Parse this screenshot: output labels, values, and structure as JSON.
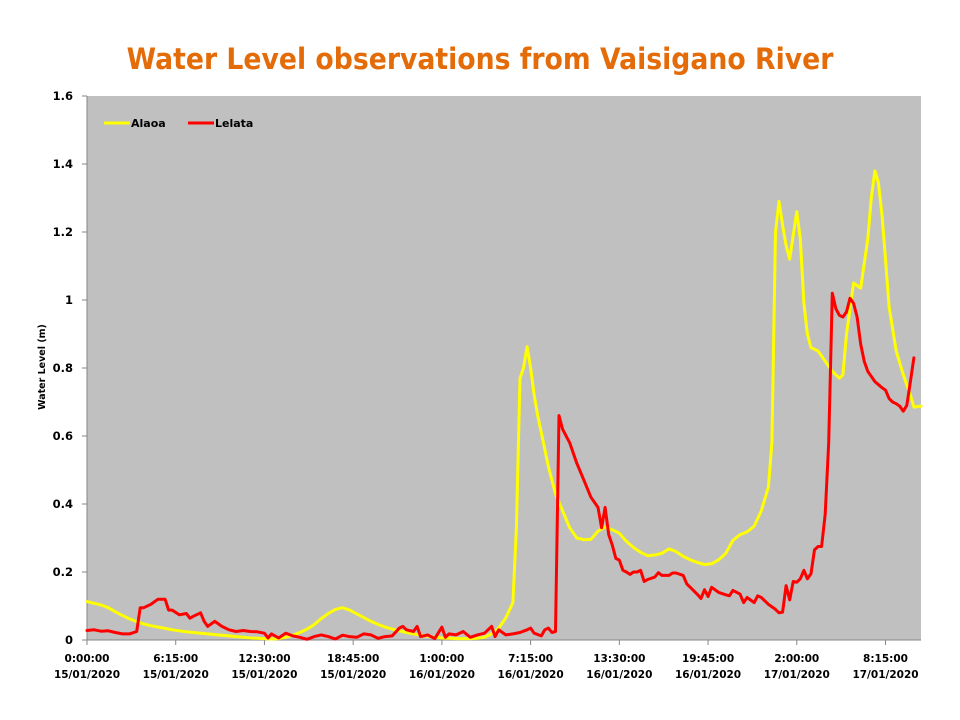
{
  "chart_data": {
    "type": "line",
    "title": "Water Level observations from Vaisigano River",
    "xlabel": "",
    "ylabel": "Water Level (m)",
    "ylim": [
      0,
      1.6
    ],
    "yticks": [
      "0",
      "0.2",
      "0.4",
      "0.6",
      "0.8",
      "1",
      "1.2",
      "1.4",
      "1.6"
    ],
    "ytick_values": [
      0,
      0.2,
      0.4,
      0.6,
      0.8,
      1.0,
      1.2,
      1.4,
      1.6
    ],
    "x_unit": "hours since 0:00:00 15/01/2020",
    "xlim": [
      0,
      58.75
    ],
    "xticks": [
      {
        "hours": 0,
        "time": "0:00:00",
        "date": "15/01/2020"
      },
      {
        "hours": 6.25,
        "time": "6:15:00",
        "date": "15/01/2020"
      },
      {
        "hours": 12.5,
        "time": "12:30:00",
        "date": "15/01/2020"
      },
      {
        "hours": 18.75,
        "time": "18:45:00",
        "date": "15/01/2020"
      },
      {
        "hours": 25,
        "time": "1:00:00",
        "date": "16/01/2020"
      },
      {
        "hours": 31.25,
        "time": "7:15:00",
        "date": "16/01/2020"
      },
      {
        "hours": 37.5,
        "time": "13:30:00",
        "date": "16/01/2020"
      },
      {
        "hours": 43.75,
        "time": "19:45:00",
        "date": "16/01/2020"
      },
      {
        "hours": 50,
        "time": "2:00:00",
        "date": "17/01/2020"
      },
      {
        "hours": 56.25,
        "time": "8:15:00",
        "date": "17/01/2020"
      }
    ],
    "grid": false,
    "plot_background": "#c0c0c0",
    "legend": {
      "placement": "top-left",
      "entries": [
        "Alaoa",
        "Lelata"
      ]
    },
    "series": [
      {
        "name": "Alaoa",
        "color": "#ffff00",
        "points": [
          [
            0,
            0.113
          ],
          [
            0.5,
            0.108
          ],
          [
            1,
            0.103
          ],
          [
            1.5,
            0.095
          ],
          [
            2,
            0.083
          ],
          [
            2.5,
            0.072
          ],
          [
            3,
            0.062
          ],
          [
            3.5,
            0.054
          ],
          [
            4,
            0.047
          ],
          [
            4.5,
            0.042
          ],
          [
            5,
            0.038
          ],
          [
            5.5,
            0.034
          ],
          [
            6,
            0.03
          ],
          [
            6.5,
            0.027
          ],
          [
            7,
            0.024
          ],
          [
            7.5,
            0.022
          ],
          [
            8,
            0.02
          ],
          [
            8.5,
            0.018
          ],
          [
            9,
            0.016
          ],
          [
            9.5,
            0.014
          ],
          [
            10,
            0.012
          ],
          [
            10.5,
            0.01
          ],
          [
            11,
            0.008
          ],
          [
            11.5,
            0.006
          ],
          [
            12,
            0.005
          ],
          [
            12.5,
            0.004
          ],
          [
            13,
            0.003
          ],
          [
            13.5,
            0.004
          ],
          [
            14,
            0.008
          ],
          [
            14.5,
            0.014
          ],
          [
            15,
            0.022
          ],
          [
            15.5,
            0.032
          ],
          [
            16,
            0.045
          ],
          [
            16.5,
            0.063
          ],
          [
            17,
            0.078
          ],
          [
            17.5,
            0.09
          ],
          [
            18,
            0.095
          ],
          [
            18.5,
            0.088
          ],
          [
            19,
            0.077
          ],
          [
            19.5,
            0.066
          ],
          [
            20,
            0.055
          ],
          [
            20.5,
            0.046
          ],
          [
            21,
            0.038
          ],
          [
            21.5,
            0.032
          ],
          [
            22,
            0.027
          ],
          [
            22.5,
            0.022
          ],
          [
            23,
            0.018
          ],
          [
            23.5,
            0.014
          ],
          [
            24,
            0.011
          ],
          [
            24.5,
            0.008
          ],
          [
            25,
            0.006
          ],
          [
            25.5,
            0.005
          ],
          [
            26,
            0.004
          ],
          [
            26.5,
            0.004
          ],
          [
            27,
            0.004
          ],
          [
            27.5,
            0.005
          ],
          [
            28,
            0.008
          ],
          [
            28.5,
            0.018
          ],
          [
            29,
            0.035
          ],
          [
            29.5,
            0.065
          ],
          [
            30,
            0.11
          ],
          [
            30.25,
            0.33
          ],
          [
            30.5,
            0.77
          ],
          [
            30.75,
            0.8
          ],
          [
            31,
            0.863
          ],
          [
            31.25,
            0.8
          ],
          [
            31.5,
            0.72
          ],
          [
            31.75,
            0.66
          ],
          [
            32,
            0.61
          ],
          [
            32.5,
            0.51
          ],
          [
            33,
            0.43
          ],
          [
            33.5,
            0.38
          ],
          [
            34,
            0.33
          ],
          [
            34.5,
            0.3
          ],
          [
            35,
            0.295
          ],
          [
            35.5,
            0.296
          ],
          [
            36,
            0.32
          ],
          [
            36.5,
            0.332
          ],
          [
            37,
            0.324
          ],
          [
            37.5,
            0.314
          ],
          [
            38,
            0.29
          ],
          [
            38.5,
            0.272
          ],
          [
            39,
            0.258
          ],
          [
            39.5,
            0.248
          ],
          [
            40,
            0.25
          ],
          [
            40.5,
            0.255
          ],
          [
            41,
            0.268
          ],
          [
            41.5,
            0.26
          ],
          [
            42,
            0.246
          ],
          [
            42.5,
            0.236
          ],
          [
            43,
            0.228
          ],
          [
            43.5,
            0.222
          ],
          [
            44,
            0.224
          ],
          [
            44.5,
            0.236
          ],
          [
            45,
            0.255
          ],
          [
            45.5,
            0.293
          ],
          [
            46,
            0.31
          ],
          [
            46.5,
            0.318
          ],
          [
            47,
            0.335
          ],
          [
            47.5,
            0.38
          ],
          [
            48,
            0.45
          ],
          [
            48.25,
            0.58
          ],
          [
            48.5,
            1.2
          ],
          [
            48.75,
            1.29
          ],
          [
            49,
            1.22
          ],
          [
            49.25,
            1.16
          ],
          [
            49.5,
            1.12
          ],
          [
            49.75,
            1.19
          ],
          [
            50,
            1.26
          ],
          [
            50.25,
            1.18
          ],
          [
            50.5,
            0.99
          ],
          [
            50.75,
            0.9
          ],
          [
            51,
            0.86
          ],
          [
            51.5,
            0.85
          ],
          [
            52,
            0.82
          ],
          [
            52.5,
            0.79
          ],
          [
            53,
            0.77
          ],
          [
            53.25,
            0.78
          ],
          [
            53.5,
            0.9
          ],
          [
            54,
            1.05
          ],
          [
            54.5,
            1.035
          ],
          [
            55,
            1.18
          ],
          [
            55.25,
            1.3
          ],
          [
            55.5,
            1.38
          ],
          [
            55.75,
            1.345
          ],
          [
            56,
            1.25
          ],
          [
            56.25,
            1.12
          ],
          [
            56.5,
            0.98
          ],
          [
            57,
            0.85
          ],
          [
            57.5,
            0.78
          ],
          [
            58,
            0.72
          ],
          [
            58.25,
            0.685
          ],
          [
            58.75,
            0.688
          ]
        ]
      },
      {
        "name": "Lelata",
        "color": "#ff0000",
        "points": [
          [
            0,
            0.028
          ],
          [
            0.5,
            0.03
          ],
          [
            1,
            0.026
          ],
          [
            1.5,
            0.027
          ],
          [
            2,
            0.022
          ],
          [
            2.5,
            0.018
          ],
          [
            3,
            0.018
          ],
          [
            3.5,
            0.025
          ],
          [
            3.75,
            0.095
          ],
          [
            4,
            0.095
          ],
          [
            4.5,
            0.105
          ],
          [
            5,
            0.12
          ],
          [
            5.5,
            0.12
          ],
          [
            5.75,
            0.088
          ],
          [
            6,
            0.088
          ],
          [
            6.5,
            0.074
          ],
          [
            7,
            0.078
          ],
          [
            7.25,
            0.064
          ],
          [
            7.5,
            0.07
          ],
          [
            8,
            0.08
          ],
          [
            8.25,
            0.055
          ],
          [
            8.5,
            0.04
          ],
          [
            9,
            0.055
          ],
          [
            9.5,
            0.04
          ],
          [
            10,
            0.03
          ],
          [
            10.5,
            0.025
          ],
          [
            11,
            0.028
          ],
          [
            11.5,
            0.025
          ],
          [
            12,
            0.024
          ],
          [
            12.5,
            0.02
          ],
          [
            12.75,
            0.006
          ],
          [
            13,
            0.018
          ],
          [
            13.5,
            0.006
          ],
          [
            14,
            0.02
          ],
          [
            14.5,
            0.012
          ],
          [
            15,
            0.008
          ],
          [
            15.5,
            0.002
          ],
          [
            16,
            0.01
          ],
          [
            16.5,
            0.015
          ],
          [
            17,
            0.01
          ],
          [
            17.5,
            0.003
          ],
          [
            18,
            0.014
          ],
          [
            18.5,
            0.01
          ],
          [
            19,
            0.008
          ],
          [
            19.5,
            0.018
          ],
          [
            20,
            0.015
          ],
          [
            20.5,
            0.005
          ],
          [
            21,
            0.01
          ],
          [
            21.5,
            0.012
          ],
          [
            22,
            0.035
          ],
          [
            22.25,
            0.04
          ],
          [
            22.5,
            0.03
          ],
          [
            23,
            0.025
          ],
          [
            23.25,
            0.04
          ],
          [
            23.5,
            0.01
          ],
          [
            24,
            0.015
          ],
          [
            24.5,
            0.004
          ],
          [
            25,
            0.038
          ],
          [
            25.25,
            0.008
          ],
          [
            25.5,
            0.018
          ],
          [
            26,
            0.015
          ],
          [
            26.5,
            0.025
          ],
          [
            27,
            0.008
          ],
          [
            27.5,
            0.015
          ],
          [
            28,
            0.02
          ],
          [
            28.5,
            0.04
          ],
          [
            28.75,
            0.01
          ],
          [
            29,
            0.03
          ],
          [
            29.5,
            0.015
          ],
          [
            30,
            0.018
          ],
          [
            30.5,
            0.022
          ],
          [
            31,
            0.03
          ],
          [
            31.25,
            0.035
          ],
          [
            31.5,
            0.02
          ],
          [
            32,
            0.012
          ],
          [
            32.25,
            0.03
          ],
          [
            32.5,
            0.035
          ],
          [
            32.75,
            0.022
          ],
          [
            33,
            0.025
          ],
          [
            33.25,
            0.66
          ],
          [
            33.5,
            0.62
          ],
          [
            34,
            0.58
          ],
          [
            34.5,
            0.52
          ],
          [
            35,
            0.47
          ],
          [
            35.5,
            0.42
          ],
          [
            36,
            0.39
          ],
          [
            36.25,
            0.33
          ],
          [
            36.5,
            0.39
          ],
          [
            36.75,
            0.31
          ],
          [
            37,
            0.28
          ],
          [
            37.25,
            0.24
          ],
          [
            37.5,
            0.235
          ],
          [
            37.75,
            0.205
          ],
          [
            38,
            0.2
          ],
          [
            38.25,
            0.193
          ],
          [
            38.5,
            0.2
          ],
          [
            38.75,
            0.2
          ],
          [
            39,
            0.205
          ],
          [
            39.25,
            0.172
          ],
          [
            39.5,
            0.178
          ],
          [
            40,
            0.185
          ],
          [
            40.25,
            0.198
          ],
          [
            40.5,
            0.19
          ],
          [
            41,
            0.19
          ],
          [
            41.25,
            0.197
          ],
          [
            41.5,
            0.197
          ],
          [
            42,
            0.19
          ],
          [
            42.25,
            0.165
          ],
          [
            42.5,
            0.155
          ],
          [
            43,
            0.134
          ],
          [
            43.25,
            0.122
          ],
          [
            43.5,
            0.148
          ],
          [
            43.75,
            0.128
          ],
          [
            44,
            0.155
          ],
          [
            44.5,
            0.14
          ],
          [
            45,
            0.133
          ],
          [
            45.25,
            0.13
          ],
          [
            45.5,
            0.146
          ],
          [
            46,
            0.135
          ],
          [
            46.25,
            0.11
          ],
          [
            46.5,
            0.125
          ],
          [
            47,
            0.11
          ],
          [
            47.25,
            0.13
          ],
          [
            47.5,
            0.125
          ],
          [
            48,
            0.105
          ],
          [
            48.5,
            0.09
          ],
          [
            48.75,
            0.08
          ],
          [
            49,
            0.082
          ],
          [
            49.25,
            0.16
          ],
          [
            49.5,
            0.118
          ],
          [
            49.75,
            0.172
          ],
          [
            50,
            0.17
          ],
          [
            50.25,
            0.18
          ],
          [
            50.5,
            0.205
          ],
          [
            50.75,
            0.18
          ],
          [
            51,
            0.195
          ],
          [
            51.25,
            0.265
          ],
          [
            51.5,
            0.275
          ],
          [
            51.75,
            0.275
          ],
          [
            52,
            0.37
          ],
          [
            52.25,
            0.58
          ],
          [
            52.5,
            1.02
          ],
          [
            52.75,
            0.975
          ],
          [
            53,
            0.955
          ],
          [
            53.25,
            0.95
          ],
          [
            53.5,
            0.965
          ],
          [
            53.75,
            1.005
          ],
          [
            54,
            0.99
          ],
          [
            54.25,
            0.95
          ],
          [
            54.5,
            0.87
          ],
          [
            54.75,
            0.82
          ],
          [
            55,
            0.79
          ],
          [
            55.5,
            0.76
          ],
          [
            56,
            0.742
          ],
          [
            56.25,
            0.735
          ],
          [
            56.5,
            0.71
          ],
          [
            56.75,
            0.7
          ],
          [
            57,
            0.695
          ],
          [
            57.25,
            0.688
          ],
          [
            57.5,
            0.673
          ],
          [
            57.75,
            0.69
          ],
          [
            58,
            0.76
          ],
          [
            58.25,
            0.83
          ]
        ]
      }
    ]
  }
}
